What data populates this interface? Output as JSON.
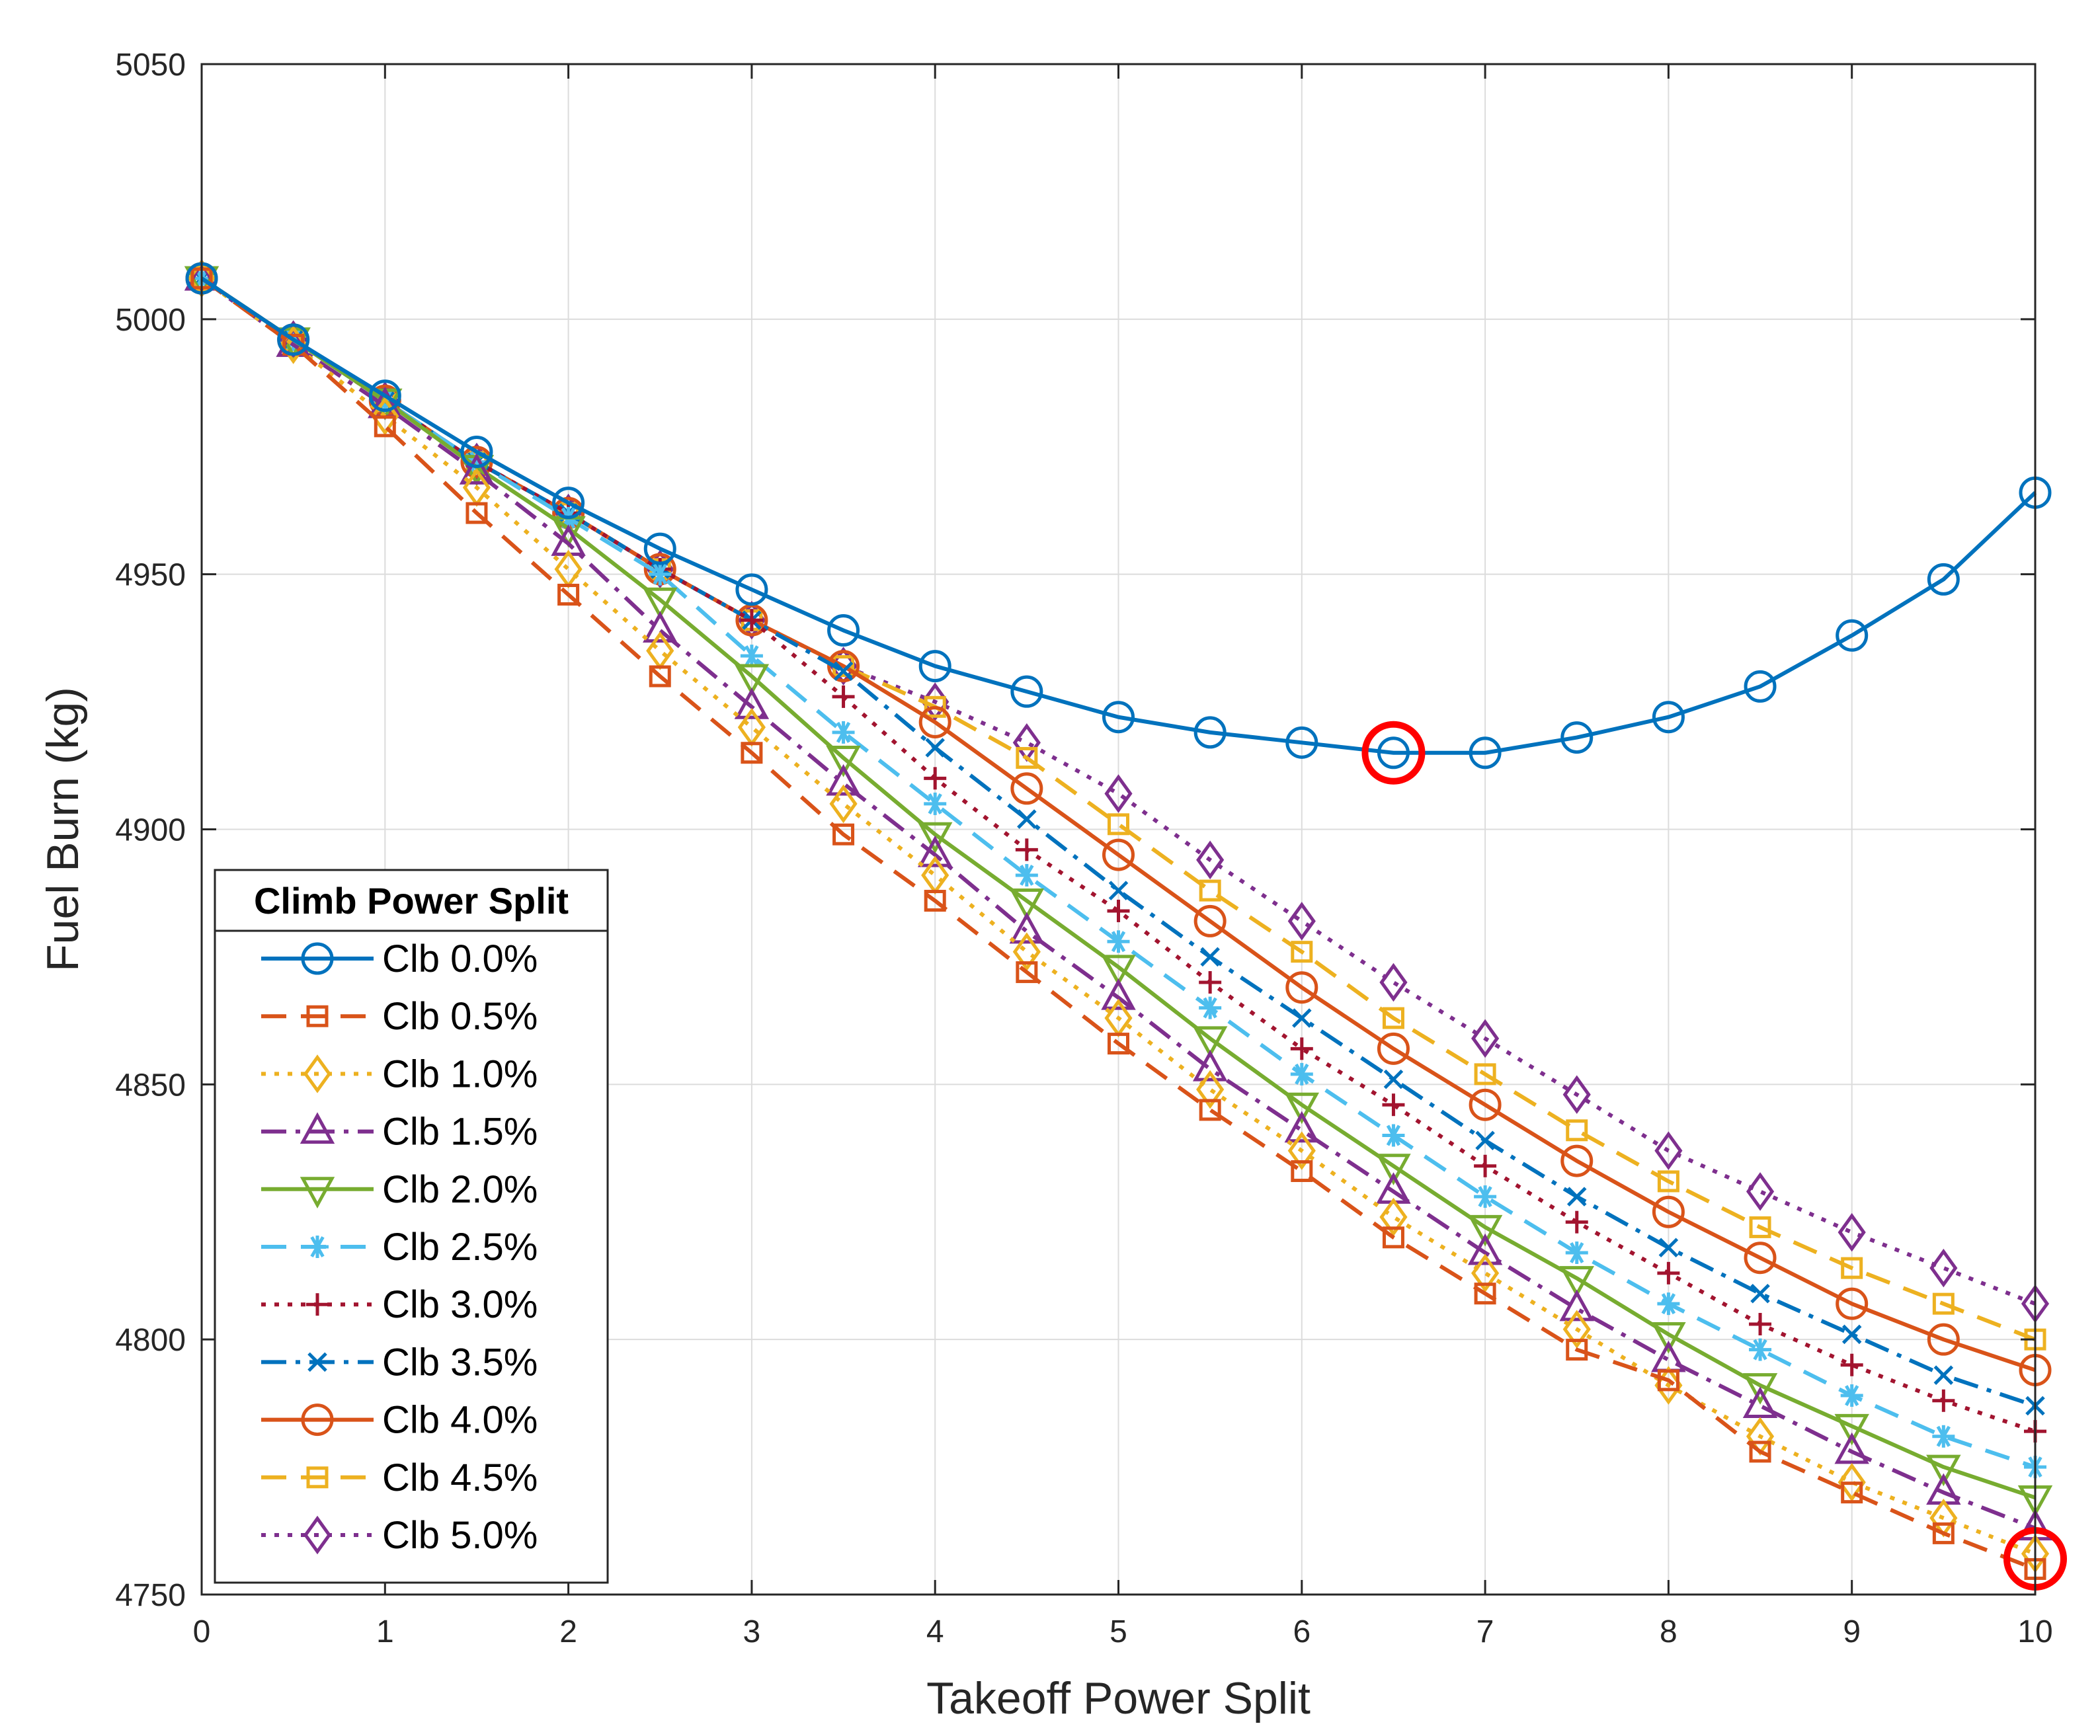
{
  "chart_data": {
    "type": "line",
    "title": "",
    "xlabel": "Takeoff Power Split",
    "ylabel": "Fuel Burn (kg)",
    "xlim": [
      0,
      10
    ],
    "ylim": [
      4750,
      5050
    ],
    "xticks": [
      0,
      1,
      2,
      3,
      4,
      5,
      6,
      7,
      8,
      9,
      10
    ],
    "yticks": [
      4750,
      4800,
      4850,
      4900,
      4950,
      5000,
      5050
    ],
    "grid": true,
    "legend": {
      "title": "Climb Power Split",
      "position": "bottom-left"
    },
    "x": [
      0,
      0.5,
      1,
      1.5,
      2,
      2.5,
      3,
      3.5,
      4,
      4.5,
      5,
      5.5,
      6,
      6.5,
      7,
      7.5,
      8,
      8.5,
      9,
      9.5,
      10
    ],
    "series": [
      {
        "name": "Clb 0.0%",
        "color": "#0072BD",
        "dash": "solid",
        "marker": "circle",
        "values": [
          5008,
          4996,
          4985,
          4974,
          4964,
          4955,
          4947,
          4939,
          4932,
          4927,
          4922,
          4919,
          4917,
          4915,
          4915,
          4918,
          4922,
          4928,
          4938,
          4949,
          4966
        ]
      },
      {
        "name": "Clb 0.5%",
        "color": "#D95319",
        "dash": "dashed",
        "marker": "square",
        "values": [
          5008,
          4995,
          4979,
          4962,
          4946,
          4930,
          4915,
          4899,
          4886,
          4872,
          4858,
          4845,
          4833,
          4820,
          4809,
          4798,
          4792,
          4778,
          4770,
          4762,
          4755
        ]
      },
      {
        "name": "Clb 1.0%",
        "color": "#EDB120",
        "dash": "dotted",
        "marker": "diamond",
        "values": [
          5008,
          4995,
          4981,
          4967,
          4951,
          4935,
          4920,
          4905,
          4891,
          4876,
          4863,
          4849,
          4837,
          4824,
          4813,
          4802,
          4791,
          4781,
          4772,
          4765,
          4758
        ]
      },
      {
        "name": "Clb 1.5%",
        "color": "#7E2F8E",
        "dash": "dashdot",
        "marker": "triangle-up",
        "values": [
          5008,
          4995,
          4983,
          4970,
          4956,
          4939,
          4924,
          4909,
          4895,
          4880,
          4867,
          4853,
          4841,
          4829,
          4817,
          4806,
          4796,
          4787,
          4778,
          4770,
          4763
        ]
      },
      {
        "name": "Clb 2.0%",
        "color": "#77AC30",
        "dash": "solid",
        "marker": "triangle-down",
        "values": [
          5008,
          4996,
          4984,
          4971,
          4959,
          4945,
          4930,
          4914,
          4899,
          4886,
          4873,
          4859,
          4846,
          4834,
          4822,
          4812,
          4801,
          4791,
          4783,
          4775,
          4769
        ]
      },
      {
        "name": "Clb 2.5%",
        "color": "#4DBEEE",
        "dash": "dashed",
        "marker": "asterisk",
        "values": [
          5008,
          4996,
          4984,
          4972,
          4961,
          4950,
          4934,
          4919,
          4905,
          4891,
          4878,
          4865,
          4852,
          4840,
          4828,
          4817,
          4807,
          4798,
          4789,
          4781,
          4775
        ]
      },
      {
        "name": "Clb 3.0%",
        "color": "#A2142F",
        "dash": "dotted",
        "marker": "plus",
        "values": [
          5008,
          4996,
          4984,
          4972,
          4962,
          4951,
          4941,
          4926,
          4910,
          4896,
          4884,
          4870,
          4857,
          4846,
          4834,
          4823,
          4813,
          4803,
          4795,
          4788,
          4782
        ]
      },
      {
        "name": "Clb 3.5%",
        "color": "#0072BD",
        "dash": "dashdot",
        "marker": "x",
        "values": [
          5008,
          4996,
          4984,
          4972,
          4962,
          4951,
          4941,
          4931,
          4916,
          4902,
          4888,
          4875,
          4863,
          4851,
          4839,
          4828,
          4818,
          4809,
          4801,
          4793,
          4787
        ]
      },
      {
        "name": "Clb 4.0%",
        "color": "#D95319",
        "dash": "solid",
        "marker": "circle",
        "values": [
          5008,
          4996,
          4984,
          4972,
          4962,
          4951,
          4941,
          4932,
          4921,
          4908,
          4895,
          4882,
          4869,
          4857,
          4846,
          4835,
          4825,
          4816,
          4807,
          4800,
          4794
        ]
      },
      {
        "name": "Clb 4.5%",
        "color": "#EDB120",
        "dash": "dashed",
        "marker": "square",
        "values": [
          5008,
          4996,
          4984,
          4972,
          4962,
          4951,
          4941,
          4932,
          4924,
          4914,
          4901,
          4888,
          4876,
          4863,
          4852,
          4841,
          4831,
          4822,
          4814,
          4807,
          4800
        ]
      },
      {
        "name": "Clb 5.0%",
        "color": "#7E2F8E",
        "dash": "dotted",
        "marker": "diamond",
        "values": [
          5008,
          4996,
          4984,
          4972,
          4962,
          4951,
          4941,
          4932,
          4925,
          4917,
          4907,
          4894,
          4882,
          4870,
          4859,
          4848,
          4837,
          4829,
          4821,
          4814,
          4807
        ]
      }
    ],
    "highlights": [
      {
        "x": 6.5,
        "y": 4915,
        "color": "#FF0000"
      },
      {
        "x": 10,
        "y": 4757,
        "color": "#FF0000"
      }
    ]
  }
}
